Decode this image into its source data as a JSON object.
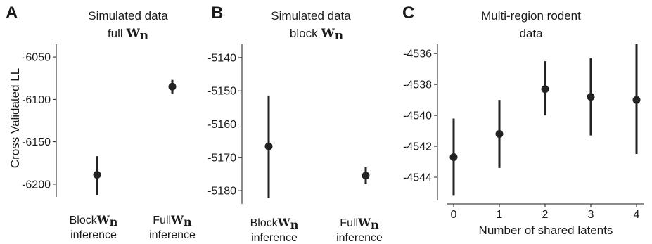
{
  "figure": {
    "ylabel": "Cross Validated LL"
  },
  "panels": [
    {
      "letter": "A",
      "title_line1": "Simulated data",
      "title_line2_text": "full",
      "title_line2_math": "W",
      "title_line2_sub": "n"
    },
    {
      "letter": "B",
      "title_line1": "Simulated data",
      "title_line2_text": "block",
      "title_line2_math": "W",
      "title_line2_sub": "n"
    },
    {
      "letter": "C",
      "title_line1": "Multi-region rodent",
      "title_line2_text": "data",
      "title_line2_math": "",
      "title_line2_sub": ""
    }
  ],
  "chart_data": [
    {
      "type": "scatter",
      "error_bars": true,
      "title": "Simulated data full W_n",
      "ylabel": "Cross Validated LL",
      "categories": [
        {
          "line1_prefix": "Block",
          "line1_math": "W",
          "line1_sub": "n",
          "line2": "inference"
        },
        {
          "line1_prefix": "Full",
          "line1_math": "W",
          "line1_sub": "n",
          "line2": "inference"
        }
      ],
      "points": [
        {
          "y": -6189,
          "lower": -6213,
          "upper": -6167
        },
        {
          "y": -6085,
          "lower": -6093,
          "upper": -6077
        }
      ],
      "ylim": [
        -6215,
        -6035
      ],
      "yticks": [
        -6050,
        -6100,
        -6150,
        -6200
      ],
      "grid": false,
      "color": "#222222"
    },
    {
      "type": "scatter",
      "error_bars": true,
      "title": "Simulated data block W_n",
      "categories": [
        {
          "line1_prefix": "Block",
          "line1_math": "W",
          "line1_sub": "n",
          "line2": "inference"
        },
        {
          "line1_prefix": "Full",
          "line1_math": "W",
          "line1_sub": "n",
          "line2": "inference"
        }
      ],
      "points": [
        {
          "y": -5166.7,
          "lower": -5182.2,
          "upper": -5151.4
        },
        {
          "y": -5175.5,
          "lower": -5178.0,
          "upper": -5173.0
        }
      ],
      "ylim": [
        -5184,
        -5136
      ],
      "yticks": [
        -5140,
        -5150,
        -5160,
        -5170,
        -5180
      ],
      "grid": false,
      "color": "#222222"
    },
    {
      "type": "scatter",
      "error_bars": true,
      "title": "Multi-region rodent data",
      "xlabel": "Number of shared latents",
      "x": [
        0,
        1,
        2,
        3,
        4
      ],
      "xticks": [
        0,
        1,
        2,
        3,
        4
      ],
      "points": [
        {
          "y": -4542.7,
          "lower": -4545.2,
          "upper": -4540.2
        },
        {
          "y": -4541.2,
          "lower": -4543.4,
          "upper": -4539.0
        },
        {
          "y": -4538.3,
          "lower": -4540.0,
          "upper": -4536.5
        },
        {
          "y": -4538.8,
          "lower": -4541.3,
          "upper": -4536.3
        },
        {
          "y": -4539.0,
          "lower": -4542.5,
          "upper": -4535.4
        }
      ],
      "xlim": [
        -0.3,
        4.3
      ],
      "ylim": [
        -4545.5,
        -4535.4
      ],
      "yticks": [
        -4536,
        -4538,
        -4540,
        -4542,
        -4544
      ],
      "grid": false,
      "color": "#222222"
    }
  ]
}
